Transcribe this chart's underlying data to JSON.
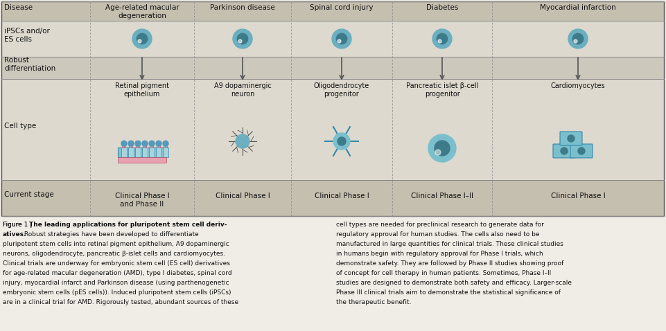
{
  "bg_color": "#f0ede6",
  "table_bg": "#ddd8cc",
  "header_bg": "#c8c3b5",
  "white_row_bg": "#e8e4da",
  "bottom_bg": "#e8e4da",
  "border_color": "#999999",
  "text_color": "#1a1a1a",
  "cell_color": "#7ab8c8",
  "arrow_color": "#555555",
  "row_labels": [
    "Disease",
    "iPSCs and/or\nES cells",
    "Robust\ndifferentiation",
    "Cell type",
    "Current stage"
  ],
  "col_headers": [
    "Age-related macular\ndegeneration",
    "Parkinson disease",
    "Spinal cord injury",
    "Diabetes",
    "Myocardial infarction"
  ],
  "current_stages": [
    "Clinical Phase I\nand Phase II",
    "Clinical Phase I",
    "Clinical Phase I",
    "Clinical Phase I–II",
    "Clinical Phase I"
  ],
  "cell_types": [
    "Retinal pigment\nepithelium",
    "A9 dopaminergic\nneuron",
    "Oligodendrocyte\nprogenitor",
    "Pancreatic islet β-cell\nprogenitor",
    "Cardiomyocytes"
  ],
  "caption_left": "Figure 1 | The leading applications for pluripotent stem cell deriv-\natives. Robust strategies have been developed to differentiate\npluripotent stem cells into retinal pigment epithelium, A9 dopaminergic\nneurons, oligodendrocyte, pancreatic β-islet cells and cardiomyocytes.\nClinical trials are underway for embryonic stem cell (ES cell) derivatives\nfor age-related macular degeneration (AMD), type I diabetes, spinal cord\ninjury, myocardial infarct and Parkinson disease (using parthenogenetic\nembryonic stem cells (pES cells)). Induced pluripotent stem cells (iPSCs)\nare in a clinical trial for AMD. Rigorously tested, abundant sources of these",
  "caption_right": "cell types are needed for preclinical research to generate data for\nregulatory approval for human studies. The cells also need to be\nmanufactured in large quantities for clinical trials. These clinical studies\nin humans begin with regulatory approval for Phase I trials, which\ndemonstrate safety. They are followed by Phase II studies showing proof\nof concept for cell therapy in human patients. Sometimes, Phase I–II\nstudies are designed to demonstrate both safety and efficacy. Larger-scale\nPhase III clinical trials aim to demonstrate the statistical significance of\nthe therapeutic benefit."
}
